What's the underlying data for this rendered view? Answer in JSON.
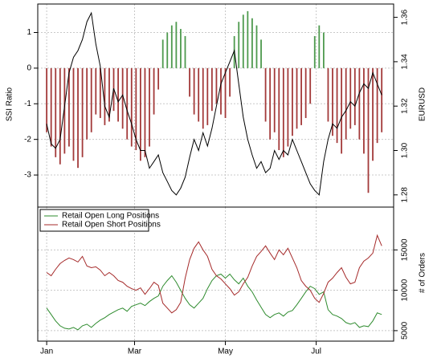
{
  "chart_data": [
    {
      "type": "bar",
      "x": [
        1,
        4,
        7,
        10,
        13,
        16,
        19,
        22,
        25,
        28,
        31,
        34,
        37,
        40,
        43,
        46,
        49,
        52,
        55,
        58,
        61,
        64,
        67,
        70,
        73,
        76,
        79,
        82,
        85,
        88,
        91,
        94,
        97,
        100,
        103,
        106,
        109,
        112,
        115,
        118,
        121,
        124,
        127,
        130,
        133,
        136,
        139,
        142,
        145,
        148,
        151,
        154,
        157,
        160,
        163,
        166,
        169,
        172,
        175,
        178,
        181,
        184,
        187,
        190,
        193,
        196,
        199,
        202,
        205,
        208,
        211,
        214,
        217,
        220,
        223,
        226
      ],
      "xlim": [
        -5,
        234
      ],
      "xticks": [
        1,
        60,
        121,
        182
      ],
      "ylabel": "SSI Ratio",
      "ylim": [
        -3.9,
        1.8
      ],
      "yticks": [
        -3,
        -2,
        -1,
        0,
        1
      ],
      "y2label": "EURUSD",
      "y2lim": [
        1.2745,
        1.366
      ],
      "y2ticks": [
        1.28,
        {
          "value": 1.3,
          "label": "1.30"
        },
        1.32,
        1.34,
        1.36
      ],
      "grid": true,
      "positive_color": "#4e9a4e",
      "negative_color": "#a33a3a",
      "series": [
        {
          "type": "bar",
          "values": [
            -1.8,
            -2.2,
            -2.5,
            -2.7,
            -2.4,
            -2.2,
            -2.6,
            -2.8,
            -2.5,
            -2.0,
            -1.8,
            -1.3,
            -1.4,
            -1.6,
            -1.5,
            -1.2,
            -1.5,
            -1.7,
            -2.0,
            -2.2,
            -2.3,
            -2.6,
            -2.5,
            -2.2,
            -1.3,
            -0.6,
            0.8,
            1.0,
            1.2,
            1.3,
            1.1,
            0.9,
            -0.8,
            -1.3,
            -1.5,
            -1.7,
            -1.6,
            -1.2,
            -1.0,
            -1.3,
            -1.4,
            -0.8,
            0.9,
            1.3,
            1.5,
            1.6,
            1.4,
            1.2,
            0.8,
            -1.5,
            -2.0,
            -1.8,
            -2.3,
            -2.5,
            -2.2,
            -1.9,
            -1.7,
            -1.6,
            -1.4,
            -1.0,
            0.9,
            1.2,
            1.0,
            -1.5,
            -1.9,
            -2.1,
            -2.4,
            -2.0,
            -1.7,
            -1.6,
            -2.0,
            -2.4,
            -3.5,
            -2.6,
            -2.1,
            -1.8
          ]
        },
        {
          "type": "line",
          "axis": "y2",
          "color": "#000000",
          "values": [
            1.312,
            1.303,
            1.301,
            1.305,
            1.32,
            1.335,
            1.342,
            1.345,
            1.35,
            1.358,
            1.362,
            1.348,
            1.338,
            1.32,
            1.315,
            1.328,
            1.322,
            1.325,
            1.318,
            1.312,
            1.305,
            1.3,
            1.3,
            1.292,
            1.295,
            1.298,
            1.29,
            1.286,
            1.282,
            1.28,
            1.283,
            1.288,
            1.297,
            1.305,
            1.3,
            1.308,
            1.302,
            1.31,
            1.32,
            1.33,
            1.335,
            1.34,
            1.345,
            1.33,
            1.315,
            1.305,
            1.298,
            1.292,
            1.295,
            1.29,
            1.292,
            1.3,
            1.296,
            1.3,
            1.298,
            1.305,
            1.3,
            1.295,
            1.29,
            1.285,
            1.282,
            1.28,
            1.295,
            1.305,
            1.312,
            1.31,
            1.315,
            1.318,
            1.322,
            1.32,
            1.326,
            1.33,
            1.328,
            1.335,
            1.33,
            1.325
          ]
        }
      ]
    },
    {
      "type": "line",
      "x": [
        1,
        4,
        7,
        10,
        13,
        16,
        19,
        22,
        25,
        28,
        31,
        34,
        37,
        40,
        43,
        46,
        49,
        52,
        55,
        58,
        61,
        64,
        67,
        70,
        73,
        76,
        79,
        82,
        85,
        88,
        91,
        94,
        97,
        100,
        103,
        106,
        109,
        112,
        115,
        118,
        121,
        124,
        127,
        130,
        133,
        136,
        139,
        142,
        145,
        148,
        151,
        154,
        157,
        160,
        163,
        166,
        169,
        172,
        175,
        178,
        181,
        184,
        187,
        190,
        193,
        196,
        199,
        202,
        205,
        208,
        211,
        214,
        217,
        220,
        223,
        226
      ],
      "xlim": [
        -5,
        234
      ],
      "xticks": [
        {
          "value": 1,
          "label": "Jan"
        },
        {
          "value": 60,
          "label": "Mar"
        },
        {
          "value": 121,
          "label": "May"
        },
        {
          "value": 182,
          "label": "Jul"
        }
      ],
      "y2label": "# of Orders",
      "y2lim": [
        3700,
        20300
      ],
      "y2ticks": [
        5000,
        10000,
        15000
      ],
      "grid": true,
      "legend": "upper left",
      "series": [
        {
          "name": "Retail Open Long Positions",
          "color": "#2e8b2e",
          "axis": "y2",
          "values": [
            7800,
            7000,
            6200,
            5600,
            5300,
            5200,
            5400,
            5100,
            5600,
            5800,
            5400,
            5900,
            6300,
            6600,
            7000,
            7300,
            7600,
            7800,
            7400,
            8000,
            8200,
            8400,
            8100,
            8600,
            9000,
            9300,
            10500,
            11200,
            11800,
            11000,
            10000,
            9000,
            8200,
            7800,
            8400,
            9000,
            10200,
            11200,
            11800,
            12000,
            11500,
            12000,
            11300,
            10800,
            11500,
            10500,
            9800,
            8800,
            7900,
            7000,
            6600,
            7000,
            7200,
            6800,
            7300,
            7500,
            8200,
            9000,
            9800,
            10500,
            10200,
            9500,
            9800,
            7600,
            7000,
            6800,
            6500,
            6000,
            5800,
            6000,
            5400,
            5600,
            5500,
            6200,
            7200,
            7000
          ]
        },
        {
          "name": "Retail Open Short Positions",
          "color": "#a52a2a",
          "axis": "y2",
          "values": [
            12200,
            11800,
            12600,
            13300,
            13700,
            14000,
            13800,
            13500,
            14200,
            13000,
            12800,
            12900,
            12500,
            11800,
            12200,
            11800,
            11200,
            11000,
            10500,
            10200,
            10000,
            10300,
            9500,
            10200,
            11000,
            10600,
            8400,
            7800,
            7200,
            7600,
            8500,
            11500,
            13800,
            15200,
            16000,
            15000,
            14200,
            12600,
            11800,
            11400,
            10800,
            10200,
            9400,
            9800,
            10800,
            11600,
            13000,
            14200,
            14800,
            15500,
            14600,
            13800,
            15000,
            14400,
            15200,
            14000,
            12800,
            11200,
            10500,
            10000,
            9000,
            8500,
            9600,
            11000,
            11500,
            12200,
            12800,
            11600,
            10800,
            11000,
            12800,
            13600,
            14000,
            14600,
            16800,
            15500
          ]
        }
      ]
    }
  ]
}
